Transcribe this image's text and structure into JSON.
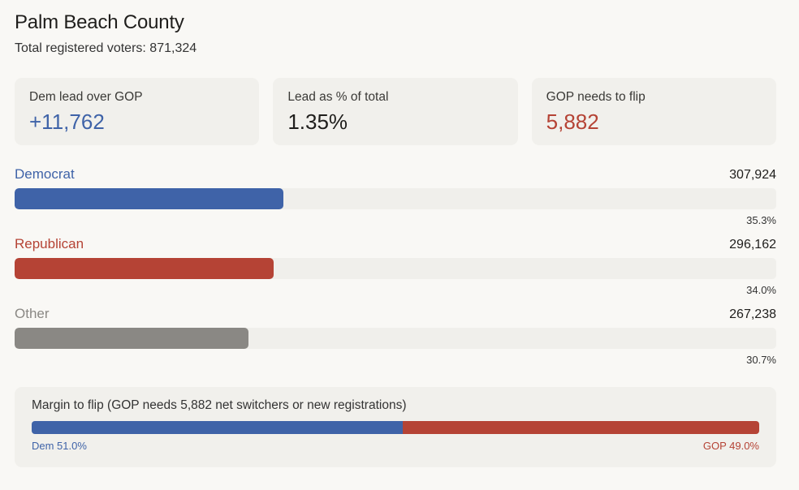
{
  "header": {
    "title": "Palm Beach County",
    "subtitle": "Total registered voters: 871,324"
  },
  "cards": [
    {
      "label": "Dem lead over GOP",
      "value": "+11,762",
      "color": "#3f63a8"
    },
    {
      "label": "Lead as % of total",
      "value": "1.35%",
      "color": "#1f1e1c"
    },
    {
      "label": "GOP needs to flip",
      "value": "5,882",
      "color": "#b54335"
    }
  ],
  "parties": [
    {
      "name": "Democrat",
      "count": "307,924",
      "pct_label": "35.3%",
      "share": 0.353,
      "color": "#3f63a8"
    },
    {
      "name": "Republican",
      "count": "296,162",
      "pct_label": "34.0%",
      "share": 0.34,
      "color": "#b54335"
    },
    {
      "name": "Other",
      "count": "267,238",
      "pct_label": "30.7%",
      "share": 0.307,
      "color": "#8a8884"
    }
  ],
  "margin": {
    "title": "Margin to flip (GOP needs 5,882 net switchers or new registrations)",
    "dem_label": "Dem 51.0%",
    "gop_label": "GOP 49.0%",
    "dem_share": 0.51,
    "gop_share": 0.49,
    "dem_color": "#3f63a8",
    "gop_color": "#b54335"
  }
}
